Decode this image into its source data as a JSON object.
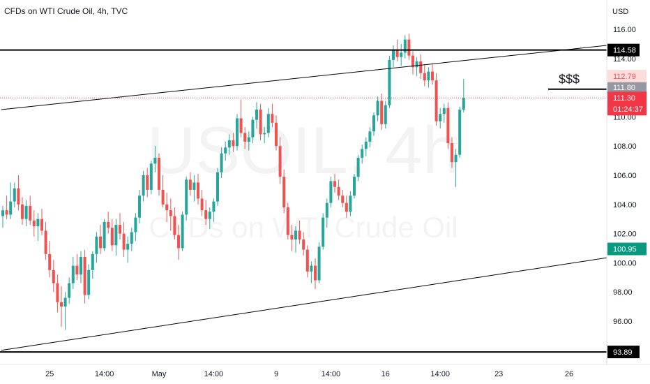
{
  "header": {
    "title": "CFDs on WTI Crude Oil, 4h, TVC"
  },
  "watermark": {
    "symbol": "USOIL, 4h",
    "description": "CFDs on WTI Crude Oil"
  },
  "colors": {
    "up": "#26a69a",
    "down": "#ef5350",
    "text": "#131722",
    "axis_text": "#131722",
    "grid_border": "#e0e3eb",
    "last_price": "#f23645",
    "target_zone": "#cfeeea",
    "stop_zone": "#fddcdc",
    "target_label": "#089981",
    "black": "#000000"
  },
  "chart_data": {
    "type": "candlestick",
    "title": "CFDs on WTI Crude Oil, 4h, TVC",
    "currency": "USD",
    "x_tick_labels": [
      "25",
      "14:00",
      "May",
      "14:00",
      "9",
      "14:00",
      "16",
      "14:00",
      "23",
      "26"
    ],
    "y_ticks": [
      96,
      98,
      100,
      102,
      104,
      106,
      108,
      110,
      112,
      114,
      116
    ],
    "y_tick_labels": [
      "96.00",
      "98.00",
      "100.00",
      "102.00",
      "104.00",
      "106.00",
      "108.00",
      "110.00",
      "112.00",
      "114.00",
      "116.00"
    ],
    "ylim": [
      92.2,
      118.0
    ],
    "horizontal_levels": [
      {
        "label": "114.58",
        "price": 114.58
      },
      {
        "label": "93.89",
        "price": 93.89
      }
    ],
    "price_labels": [
      {
        "label": "112.79",
        "price": 112.79,
        "role": "stop"
      },
      {
        "label": "111.80",
        "price": 111.8,
        "role": "entry"
      },
      {
        "label": "111.30",
        "price": 111.3,
        "role": "last"
      },
      {
        "label": "100.95",
        "price": 100.95,
        "role": "target"
      }
    ],
    "countdown": "01:24:37",
    "annotation": "$$$",
    "channel_lines": [
      {
        "from": [
          0,
          110.5
        ],
        "to": [
          215,
          116.6
        ]
      },
      {
        "from": [
          0,
          94.0
        ],
        "to": [
          215,
          102.8
        ]
      }
    ],
    "liquidity_line": {
      "from": [
        140,
        111.9
      ],
      "to": [
        162,
        111.9
      ]
    },
    "position": {
      "entry": 111.8,
      "stop": 112.79,
      "target": 100.95,
      "from": 157,
      "to": 180
    },
    "candles": [
      [
        103.2,
        103.9,
        102.4,
        103.6
      ],
      [
        103.6,
        104.6,
        103.0,
        103.3
      ],
      [
        103.3,
        105.5,
        103.0,
        104.2
      ],
      [
        104.2,
        105.5,
        103.8,
        105.1
      ],
      [
        105.1,
        106.0,
        103.6,
        104.0
      ],
      [
        104.0,
        104.5,
        102.6,
        103.0
      ],
      [
        103.0,
        104.3,
        102.5,
        103.9
      ],
      [
        103.9,
        104.6,
        102.6,
        102.9
      ],
      [
        102.9,
        103.6,
        101.8,
        102.5
      ],
      [
        102.5,
        103.4,
        101.5,
        103.0
      ],
      [
        103.0,
        103.7,
        101.9,
        102.2
      ],
      [
        102.2,
        102.8,
        100.2,
        100.6
      ],
      [
        100.6,
        101.5,
        99.0,
        99.5
      ],
      [
        99.5,
        100.2,
        98.0,
        98.6
      ],
      [
        98.6,
        99.2,
        96.6,
        97.3
      ],
      [
        97.3,
        98.4,
        95.6,
        97.0
      ],
      [
        97.0,
        98.0,
        95.4,
        97.6
      ],
      [
        97.6,
        99.0,
        97.2,
        98.6
      ],
      [
        98.6,
        100.4,
        98.2,
        99.8
      ],
      [
        99.8,
        100.6,
        98.8,
        99.2
      ],
      [
        99.2,
        100.8,
        98.6,
        100.4
      ],
      [
        100.4,
        100.9,
        97.2,
        97.8
      ],
      [
        97.8,
        99.9,
        97.5,
        99.5
      ],
      [
        99.5,
        100.8,
        98.9,
        100.6
      ],
      [
        100.6,
        102.1,
        100.0,
        101.8
      ],
      [
        101.8,
        102.6,
        100.6,
        101.0
      ],
      [
        101.0,
        103.0,
        100.8,
        102.8
      ],
      [
        102.8,
        103.5,
        102.0,
        102.4
      ],
      [
        102.4,
        103.0,
        100.8,
        101.2
      ],
      [
        101.2,
        103.0,
        100.5,
        102.6
      ],
      [
        102.6,
        103.4,
        101.6,
        102.0
      ],
      [
        102.0,
        102.8,
        100.4,
        100.9
      ],
      [
        100.9,
        101.8,
        100.0,
        101.3
      ],
      [
        101.3,
        102.4,
        100.8,
        102.1
      ],
      [
        102.1,
        103.4,
        101.5,
        103.1
      ],
      [
        103.1,
        105.0,
        102.7,
        104.6
      ],
      [
        104.6,
        106.3,
        104.2,
        106.0
      ],
      [
        106.0,
        106.5,
        104.5,
        105.0
      ],
      [
        105.0,
        107.0,
        104.7,
        106.8
      ],
      [
        106.8,
        108.0,
        106.2,
        107.2
      ],
      [
        107.2,
        107.5,
        104.6,
        105.0
      ],
      [
        105.0,
        106.0,
        103.8,
        104.0
      ],
      [
        104.0,
        104.8,
        102.8,
        103.6
      ],
      [
        103.6,
        104.4,
        102.2,
        103.2
      ],
      [
        103.2,
        103.8,
        101.6,
        101.9
      ],
      [
        101.9,
        102.6,
        100.2,
        101.0
      ],
      [
        101.0,
        103.5,
        100.8,
        103.3
      ],
      [
        103.3,
        105.9,
        102.9,
        105.7
      ],
      [
        105.7,
        106.2,
        104.6,
        105.0
      ],
      [
        105.0,
        106.0,
        104.2,
        105.5
      ],
      [
        105.5,
        106.1,
        104.0,
        104.4
      ],
      [
        104.4,
        105.0,
        103.2,
        103.6
      ],
      [
        103.6,
        104.3,
        102.6,
        103.0
      ],
      [
        103.0,
        103.8,
        102.3,
        103.5
      ],
      [
        103.5,
        104.4,
        102.8,
        104.2
      ],
      [
        104.2,
        106.5,
        103.9,
        106.2
      ],
      [
        106.2,
        107.9,
        105.8,
        107.5
      ],
      [
        107.5,
        108.3,
        107.0,
        107.9
      ],
      [
        107.9,
        108.8,
        107.4,
        108.4
      ],
      [
        108.4,
        108.9,
        107.6,
        108.0
      ],
      [
        108.0,
        110.2,
        107.7,
        109.9
      ],
      [
        109.9,
        111.2,
        108.6,
        108.9
      ],
      [
        108.9,
        109.3,
        107.8,
        108.3
      ],
      [
        108.3,
        109.0,
        107.7,
        108.6
      ],
      [
        108.6,
        110.0,
        108.2,
        109.8
      ],
      [
        109.8,
        111.0,
        109.2,
        110.5
      ],
      [
        110.5,
        110.9,
        108.4,
        108.8
      ],
      [
        108.8,
        109.3,
        108.2,
        108.9
      ],
      [
        108.9,
        110.6,
        108.6,
        110.2
      ],
      [
        110.2,
        110.9,
        109.3,
        109.6
      ],
      [
        109.6,
        110.1,
        107.7,
        108.0
      ],
      [
        108.0,
        108.6,
        105.4,
        105.9
      ],
      [
        105.9,
        106.4,
        103.4,
        103.8
      ],
      [
        103.8,
        104.1,
        101.6,
        101.9
      ],
      [
        101.9,
        102.6,
        100.8,
        101.6
      ],
      [
        101.6,
        102.5,
        100.7,
        102.2
      ],
      [
        102.2,
        102.9,
        101.3,
        101.6
      ],
      [
        101.6,
        102.1,
        100.5,
        100.9
      ],
      [
        100.9,
        101.2,
        99.0,
        99.4
      ],
      [
        99.4,
        100.1,
        98.6,
        99.8
      ],
      [
        99.8,
        100.3,
        98.2,
        98.8
      ],
      [
        98.8,
        101.4,
        98.6,
        101.1
      ],
      [
        101.1,
        103.4,
        100.9,
        103.1
      ],
      [
        103.1,
        104.4,
        102.4,
        104.1
      ],
      [
        104.1,
        105.9,
        103.8,
        105.6
      ],
      [
        105.6,
        106.1,
        104.8,
        105.2
      ],
      [
        105.2,
        105.7,
        104.3,
        104.6
      ],
      [
        104.6,
        105.0,
        103.8,
        104.1
      ],
      [
        104.1,
        104.6,
        103.1,
        103.5
      ],
      [
        103.5,
        104.9,
        103.2,
        104.6
      ],
      [
        104.6,
        106.1,
        104.4,
        105.9
      ],
      [
        105.9,
        107.4,
        105.6,
        107.2
      ],
      [
        107.2,
        108.1,
        106.8,
        107.8
      ],
      [
        107.8,
        108.6,
        107.3,
        108.3
      ],
      [
        108.3,
        109.3,
        107.9,
        109.0
      ],
      [
        109.0,
        110.3,
        108.7,
        110.1
      ],
      [
        110.1,
        111.4,
        109.7,
        111.1
      ],
      [
        111.1,
        111.6,
        109.1,
        109.5
      ],
      [
        109.5,
        111.1,
        109.2,
        110.8
      ],
      [
        110.8,
        114.2,
        110.6,
        113.9
      ],
      [
        113.9,
        114.9,
        113.4,
        114.6
      ],
      [
        114.6,
        115.3,
        113.8,
        114.1
      ],
      [
        114.1,
        115.0,
        113.5,
        114.4
      ],
      [
        114.4,
        115.6,
        114.0,
        115.3
      ],
      [
        115.3,
        115.7,
        113.9,
        114.2
      ],
      [
        114.2,
        114.5,
        112.9,
        113.4
      ],
      [
        113.4,
        114.1,
        112.8,
        113.8
      ],
      [
        113.8,
        114.3,
        112.6,
        113.0
      ],
      [
        113.0,
        113.6,
        112.1,
        112.5
      ],
      [
        112.5,
        113.4,
        112.0,
        113.1
      ],
      [
        113.1,
        113.6,
        112.2,
        112.5
      ],
      [
        112.5,
        113.0,
        109.4,
        109.7
      ],
      [
        109.7,
        110.6,
        109.2,
        110.2
      ],
      [
        110.2,
        110.9,
        109.6,
        110.6
      ],
      [
        110.6,
        111.0,
        107.8,
        108.2
      ],
      [
        108.2,
        108.6,
        106.5,
        106.9
      ],
      [
        106.9,
        107.8,
        105.2,
        107.4
      ],
      [
        107.4,
        110.7,
        107.2,
        110.5
      ],
      [
        110.5,
        112.6,
        110.3,
        111.3
      ]
    ]
  }
}
